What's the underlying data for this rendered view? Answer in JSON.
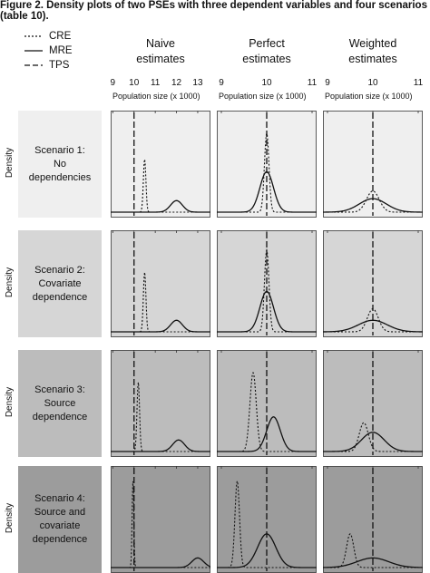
{
  "caption": {
    "line1": "Figure 2. Density plots of two PSEs with three dependent variables and four scenarios",
    "line2": "(table 10)."
  },
  "chart_data": {
    "type": "line",
    "legend": {
      "placement": "top-left",
      "entries": [
        {
          "name": "CRE",
          "style": "dotted"
        },
        {
          "name": "MRE",
          "style": "solid"
        },
        {
          "name": "TPS",
          "style": "dashed"
        }
      ]
    },
    "y_axis_label": "Density",
    "x_axis_label": "Population size (x 1000)",
    "true_value_line": {
      "x": 10,
      "style": "long-dash"
    },
    "columns": [
      {
        "title_line1": "Naive",
        "title_line2": "estimates",
        "xlim": [
          8.9,
          13.6
        ],
        "ticks": [
          9,
          10,
          11,
          12,
          13
        ]
      },
      {
        "title_line1": "Perfect",
        "title_line2": "estimates",
        "xlim": [
          8.9,
          11.1
        ],
        "ticks": [
          9,
          10,
          11
        ]
      },
      {
        "title_line1": "Weighted",
        "title_line2": "estimates",
        "xlim": [
          8.9,
          11.1
        ],
        "ticks": [
          9,
          10,
          11
        ]
      }
    ],
    "rows": [
      {
        "label": [
          "Scenario 1:",
          "No",
          "dependencies"
        ],
        "bg": "#efefef"
      },
      {
        "label": [
          "Scenario 2:",
          "Covariate",
          "dependence"
        ],
        "bg": "#d6d6d6"
      },
      {
        "label": [
          "Scenario 3:",
          "Source",
          "dependence"
        ],
        "bg": "#bcbcbc"
      },
      {
        "label": [
          "Scenario 4:",
          "Source and",
          "covariate",
          "dependence"
        ],
        "bg": "#9c9c9c"
      }
    ],
    "panels": [
      [
        {
          "cre": {
            "mu": 10.5,
            "sd": 0.06,
            "peak": 0.55
          },
          "mre": {
            "mu": 12.0,
            "sd": 0.28,
            "peak": 0.12
          }
        },
        {
          "cre": {
            "mu": 10.5,
            "sd": 0.06,
            "peak": 0.62
          },
          "mre": {
            "mu": 12.0,
            "sd": 0.28,
            "peak": 0.12
          }
        },
        {
          "cre": {
            "mu": 10.2,
            "sd": 0.06,
            "peak": 0.72
          },
          "mre": {
            "mu": 12.1,
            "sd": 0.28,
            "peak": 0.12
          }
        },
        {
          "cre": {
            "mu": 9.95,
            "sd": 0.04,
            "peak": 0.9
          },
          "mre": {
            "mu": 13.0,
            "sd": 0.28,
            "peak": 0.1
          }
        }
      ],
      [
        {
          "cre": {
            "mu": 10.0,
            "sd": 0.05,
            "peak": 0.82
          },
          "mre": {
            "mu": 10.0,
            "sd": 0.15,
            "peak": 0.42
          }
        },
        {
          "cre": {
            "mu": 10.0,
            "sd": 0.05,
            "peak": 0.85
          },
          "mre": {
            "mu": 10.0,
            "sd": 0.15,
            "peak": 0.42
          }
        },
        {
          "cre": {
            "mu": 9.7,
            "sd": 0.07,
            "peak": 0.82
          },
          "mre": {
            "mu": 10.15,
            "sd": 0.15,
            "peak": 0.36
          }
        },
        {
          "cre": {
            "mu": 9.35,
            "sd": 0.05,
            "peak": 0.9
          },
          "mre": {
            "mu": 10.0,
            "sd": 0.2,
            "peak": 0.35
          }
        }
      ],
      [
        {
          "cre": {
            "mu": 10.0,
            "sd": 0.14,
            "peak": 0.22
          },
          "mre": {
            "mu": 10.0,
            "sd": 0.3,
            "peak": 0.14
          }
        },
        {
          "cre": {
            "mu": 10.0,
            "sd": 0.12,
            "peak": 0.24
          },
          "mre": {
            "mu": 10.0,
            "sd": 0.32,
            "peak": 0.12
          }
        },
        {
          "cre": {
            "mu": 9.8,
            "sd": 0.1,
            "peak": 0.3
          },
          "mre": {
            "mu": 10.0,
            "sd": 0.25,
            "peak": 0.2
          }
        },
        {
          "cre": {
            "mu": 9.5,
            "sd": 0.08,
            "peak": 0.35
          },
          "mre": {
            "mu": 10.0,
            "sd": 0.35,
            "peak": 0.1
          }
        }
      ]
    ]
  }
}
